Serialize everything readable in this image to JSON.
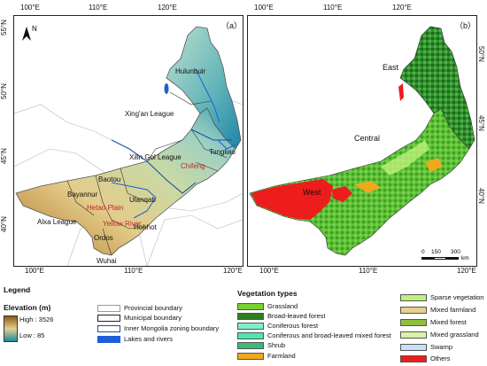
{
  "panels": {
    "a": {
      "label": "（a）"
    },
    "b": {
      "label": "（b）"
    }
  },
  "axes": {
    "lon_ticks": [
      "100°E",
      "110°E",
      "120°E"
    ],
    "lat_ticks": [
      "55°N",
      "50°N",
      "45°N",
      "40°N"
    ]
  },
  "north_arrow": "N",
  "map_a_labels": {
    "hulunbuir": "Hulunbuir",
    "xingan": "Xing'an League",
    "xilingol": "Xilin Gol League",
    "chifeng": "Chifeng",
    "tongliao": "Tongliao",
    "baotou": "Baotou",
    "bayannur": "Bayannur",
    "ulanqab": "Ulanqab",
    "hetao": "Hetao Plain",
    "alxa": "Alxa League",
    "yellow_river": "Yellow River",
    "hohhot": "Hohhot",
    "ordos": "Ordos",
    "wuhai": "Wuhai"
  },
  "map_b_labels": {
    "east": "East",
    "central": "Central",
    "west": "West"
  },
  "scale_bar": {
    "ticks": [
      "0",
      "150",
      "300"
    ],
    "unit": "km"
  },
  "legend": {
    "title": "Legend",
    "elevation_title": "Elevation (m)",
    "elevation_high": "High : 3526",
    "elevation_low": "Low : 85",
    "boundaries": [
      {
        "label": "Provincial boundary",
        "border": "#9a9a9a"
      },
      {
        "label": "Municipal boundary",
        "border": "#222222"
      },
      {
        "label": "Inner Mongolia zoning boundary",
        "border": "#1a4fa0"
      },
      {
        "label": "Lakes and rivers",
        "fill": "#1c5fd9"
      }
    ]
  },
  "vegetation": {
    "title": "Vegetation types",
    "left": [
      {
        "label": "Grassland",
        "color": "#78d12c"
      },
      {
        "label": "Broad-leaved forest",
        "color": "#2e7d1e"
      },
      {
        "label": "Coniferous forest",
        "color": "#7ef0c8"
      },
      {
        "label": "Coniferous and broad-leaved mixed forest",
        "color": "#49e8b0"
      },
      {
        "label": "Shrub",
        "color": "#3cb878"
      },
      {
        "label": "Farmland",
        "color": "#f0a81e"
      }
    ],
    "right": [
      {
        "label": "Sparse vegetation",
        "color": "#bff07a"
      },
      {
        "label": "Mixed farmland",
        "color": "#e6d08a"
      },
      {
        "label": "Mixed forest",
        "color": "#8fbf3c"
      },
      {
        "label": "Mixed grassland",
        "color": "#d9f2a6"
      },
      {
        "label": "Swamp",
        "color": "#c6e0f5"
      },
      {
        "label": "Others",
        "color": "#ee1c1c"
      }
    ]
  },
  "colors": {
    "elev_high": "#8c5a1a",
    "elev_mid": "#e6cf8c",
    "elev_low": "#1d8aa0",
    "river": "#1c5fd9",
    "zoning": "#1a4fa0"
  }
}
